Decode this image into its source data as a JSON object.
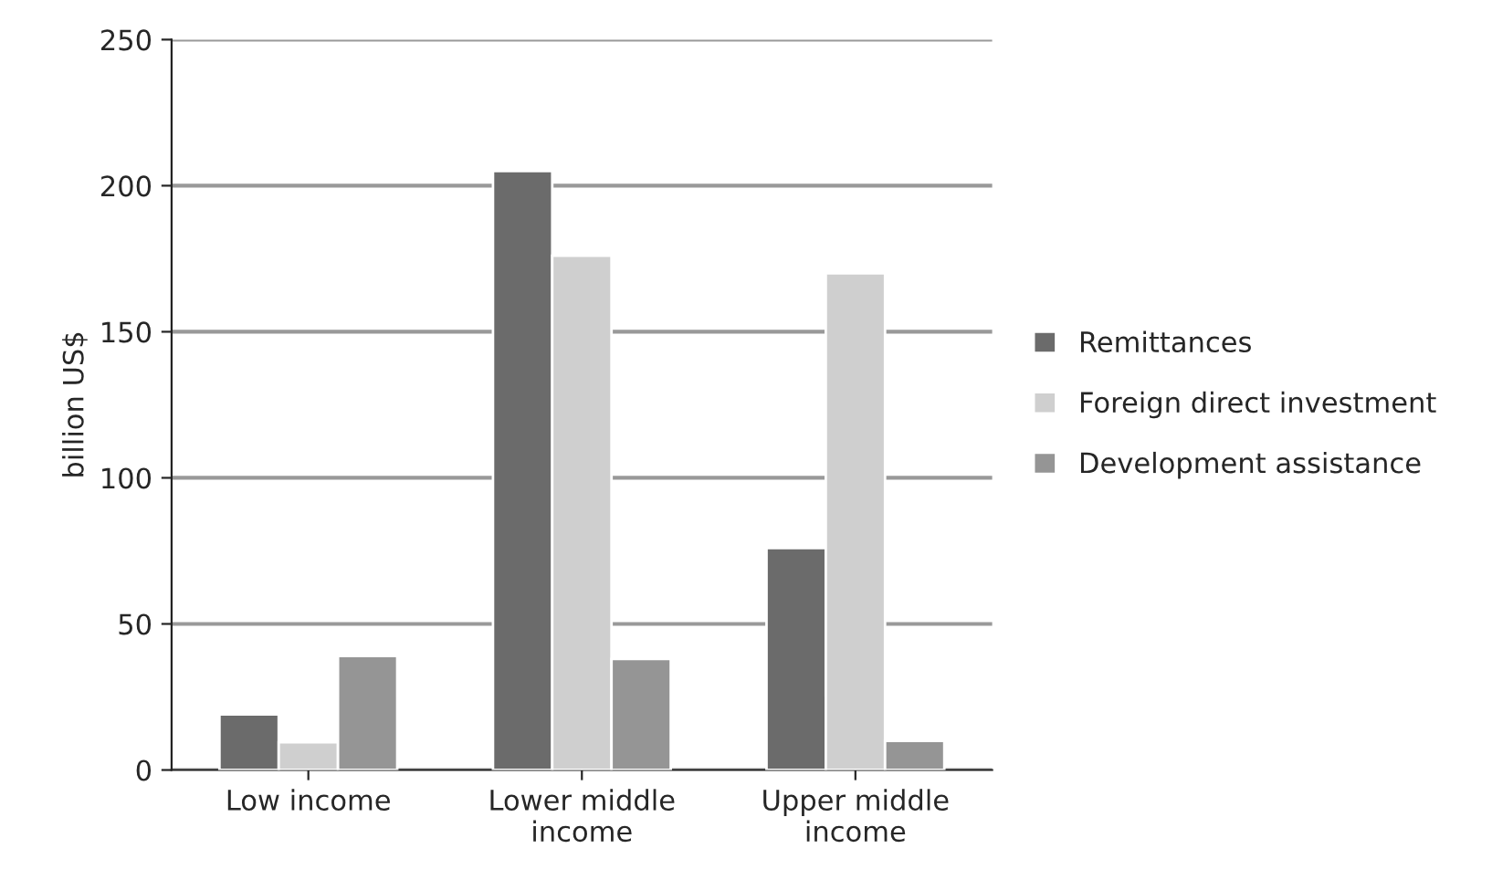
{
  "chart_data": {
    "type": "bar",
    "ylabel": "billion US$",
    "categories": [
      "Low income",
      "Lower middle\nincome",
      "Upper middle\nincome"
    ],
    "series": [
      {
        "name": "Remittances",
        "color": "#6b6b6b",
        "values": [
          19,
          205,
          76
        ]
      },
      {
        "name": "Foreign direct investment",
        "color": "#cfcfcf",
        "values": [
          9.5,
          176,
          170
        ]
      },
      {
        "name": "Development assistance",
        "color": "#959595",
        "values": [
          39,
          38,
          10
        ]
      }
    ],
    "ylim": [
      0,
      250
    ],
    "yticks": [
      0,
      50,
      100,
      150,
      200,
      250
    ],
    "grid": "y",
    "legend": "right"
  }
}
